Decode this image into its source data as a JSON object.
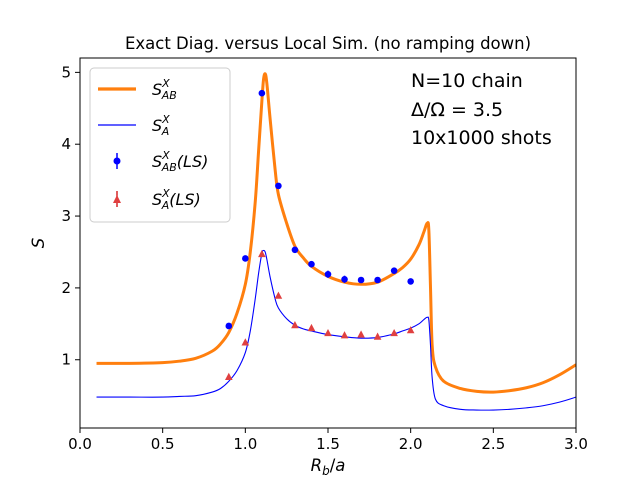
{
  "chart_data": {
    "type": "line",
    "title": "Exact Diag. versus Local Sim. (no ramping down)",
    "xlabel": "R_b/a",
    "ylabel": "S",
    "xlim": [
      0.0,
      3.0
    ],
    "ylim": [
      0.05,
      5.2
    ],
    "xticks": [
      0.0,
      0.5,
      1.0,
      1.5,
      2.0,
      2.5,
      3.0
    ],
    "xtick_labels": [
      "0.0",
      "0.5",
      "1.0",
      "1.5",
      "2.0",
      "2.5",
      "3.0"
    ],
    "yticks": [
      1,
      2,
      3,
      4,
      5
    ],
    "ytick_labels": [
      "1",
      "2",
      "3",
      "4",
      "5"
    ],
    "annotation": [
      "N=10 chain",
      "Δ/Ω = 3.5",
      "10x1000 shots"
    ],
    "legend_position": "upper-left",
    "series": [
      {
        "name": "S_AB^X",
        "kind": "line",
        "color": "#ff7f0e",
        "x": [
          0.1,
          0.3,
          0.5,
          0.6,
          0.7,
          0.8,
          0.85,
          0.9,
          0.95,
          1.0,
          1.03,
          1.06,
          1.08,
          1.1,
          1.11,
          1.12,
          1.13,
          1.15,
          1.18,
          1.2,
          1.25,
          1.3,
          1.35,
          1.4,
          1.5,
          1.6,
          1.7,
          1.8,
          1.9,
          1.95,
          2.0,
          2.05,
          2.08,
          2.1,
          2.11,
          2.12,
          2.13,
          2.15,
          2.2,
          2.3,
          2.4,
          2.5,
          2.6,
          2.7,
          2.8,
          2.9,
          3.0
        ],
        "values": [
          0.95,
          0.95,
          0.96,
          0.98,
          1.02,
          1.12,
          1.22,
          1.38,
          1.65,
          2.05,
          2.5,
          3.2,
          3.9,
          4.6,
          4.9,
          4.98,
          4.85,
          4.35,
          3.65,
          3.3,
          2.9,
          2.58,
          2.42,
          2.3,
          2.16,
          2.08,
          2.05,
          2.08,
          2.2,
          2.28,
          2.4,
          2.6,
          2.78,
          2.9,
          2.8,
          2.0,
          1.2,
          0.9,
          0.7,
          0.6,
          0.56,
          0.55,
          0.57,
          0.61,
          0.68,
          0.79,
          0.93
        ]
      },
      {
        "name": "S_A^X",
        "kind": "line",
        "color": "#0000ff",
        "x": [
          0.1,
          0.3,
          0.5,
          0.6,
          0.7,
          0.8,
          0.85,
          0.9,
          0.95,
          1.0,
          1.03,
          1.06,
          1.08,
          1.1,
          1.11,
          1.12,
          1.13,
          1.15,
          1.18,
          1.2,
          1.25,
          1.3,
          1.35,
          1.4,
          1.5,
          1.6,
          1.7,
          1.8,
          1.9,
          1.95,
          2.0,
          2.05,
          2.08,
          2.1,
          2.11,
          2.12,
          2.13,
          2.15,
          2.2,
          2.3,
          2.4,
          2.5,
          2.6,
          2.7,
          2.8,
          2.9,
          3.0
        ],
        "values": [
          0.48,
          0.48,
          0.48,
          0.49,
          0.5,
          0.55,
          0.6,
          0.7,
          0.85,
          1.1,
          1.4,
          1.85,
          2.2,
          2.48,
          2.52,
          2.5,
          2.4,
          2.15,
          1.85,
          1.72,
          1.57,
          1.48,
          1.43,
          1.4,
          1.35,
          1.32,
          1.3,
          1.31,
          1.36,
          1.4,
          1.44,
          1.5,
          1.56,
          1.59,
          1.55,
          1.2,
          0.75,
          0.45,
          0.36,
          0.31,
          0.3,
          0.3,
          0.31,
          0.33,
          0.36,
          0.41,
          0.48
        ]
      },
      {
        "name": "S_AB^X(LS)",
        "kind": "errorbar",
        "marker": "circle",
        "color": "#0000ff",
        "x": [
          0.9,
          1.0,
          1.1,
          1.2,
          1.3,
          1.4,
          1.5,
          1.6,
          1.7,
          1.8,
          1.9,
          2.0
        ],
        "values": [
          1.47,
          2.41,
          4.71,
          3.42,
          2.53,
          2.33,
          2.19,
          2.12,
          2.11,
          2.11,
          2.24,
          2.09
        ],
        "errors": [
          0.02,
          0.02,
          0.03,
          0.03,
          0.03,
          0.04,
          0.05,
          0.05,
          0.04,
          0.04,
          0.03,
          0.03
        ]
      },
      {
        "name": "S_A^X(LS)",
        "kind": "errorbar",
        "marker": "triangle",
        "color": "#d62728",
        "x": [
          0.9,
          1.0,
          1.1,
          1.2,
          1.3,
          1.4,
          1.5,
          1.6,
          1.7,
          1.8,
          1.9,
          2.0
        ],
        "values": [
          0.76,
          1.24,
          2.47,
          1.89,
          1.48,
          1.44,
          1.37,
          1.34,
          1.35,
          1.32,
          1.37,
          1.41
        ],
        "errors": [
          0.02,
          0.02,
          0.03,
          0.03,
          0.03,
          0.03,
          0.03,
          0.03,
          0.03,
          0.03,
          0.03,
          0.03
        ]
      }
    ]
  }
}
